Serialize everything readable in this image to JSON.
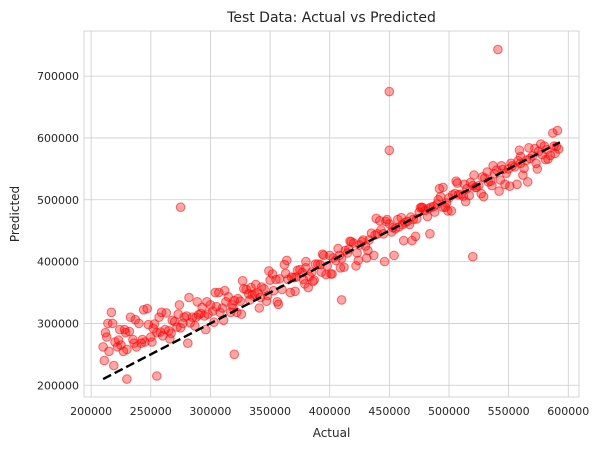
{
  "chart_data": {
    "type": "scatter",
    "title": "Test Data: Actual vs Predicted",
    "xlabel": "Actual",
    "ylabel": "Predicted",
    "xlim": [
      194000,
      609000
    ],
    "ylim": [
      181000,
      773000
    ],
    "xticks": [
      200000,
      250000,
      300000,
      350000,
      400000,
      450000,
      500000,
      550000,
      600000
    ],
    "yticks": [
      200000,
      300000,
      400000,
      500000,
      600000,
      700000
    ],
    "grid": true,
    "point_color": "#ff0000",
    "line_color": "#000000",
    "reference_line": {
      "style": "dashed",
      "x": [
        210000,
        593000
      ],
      "y": [
        210000,
        593000
      ]
    },
    "series": [
      {
        "x": [
          210000,
          212000,
          215000,
          218000,
          220000,
          222000,
          225000,
          228000,
          230000,
          232000,
          235000,
          238000,
          240000,
          243000,
          245000,
          248000,
          250000,
          252000,
          255000,
          258000,
          260000,
          263000,
          265000,
          268000,
          270000,
          272000,
          275000,
          278000,
          280000,
          283000,
          285000,
          288000,
          290000,
          293000,
          295000,
          298000,
          300000,
          302000,
          305000,
          308000,
          310000,
          313000,
          315000,
          318000,
          320000,
          323000,
          325000,
          328000,
          330000,
          333000,
          335000,
          338000,
          340000,
          343000,
          345000,
          348000,
          350000,
          353000,
          355000,
          358000,
          360000,
          363000,
          365000,
          368000,
          370000,
          373000,
          375000,
          378000,
          380000,
          383000,
          385000,
          388000,
          390000,
          393000,
          395000,
          398000,
          400000,
          403000,
          405000,
          408000,
          410000,
          413000,
          415000,
          418000,
          420000,
          423000,
          425000,
          428000,
          430000,
          433000,
          435000,
          438000,
          440000,
          443000,
          445000,
          448000,
          450000,
          453000,
          455000,
          458000,
          460000,
          463000,
          465000,
          468000,
          470000,
          473000,
          475000,
          478000,
          480000,
          483000,
          485000,
          488000,
          490000,
          493000,
          495000,
          498000,
          500000,
          503000,
          505000,
          508000,
          510000,
          513000,
          515000,
          518000,
          520000,
          523000,
          525000,
          528000,
          530000,
          533000,
          535000,
          538000,
          540000,
          543000,
          545000,
          548000,
          550000,
          553000,
          555000,
          558000,
          560000,
          563000,
          565000,
          568000,
          570000,
          573000,
          575000,
          578000,
          580000,
          583000,
          585000,
          588000,
          590000,
          592000,
          211000,
          214000,
          219000,
          224000,
          229000,
          236000,
          244000,
          251000,
          259000,
          266000,
          274000,
          281000,
          289000,
          296000,
          304000,
          311000,
          319000,
          326000,
          334000,
          341000,
          349000,
          356000,
          364000,
          371000,
          379000,
          386000,
          394000,
          401000,
          409000,
          416000,
          424000,
          431000,
          439000,
          446000,
          454000,
          461000,
          469000,
          476000,
          484000,
          491000,
          499000,
          506000,
          514000,
          521000,
          529000,
          536000,
          544000,
          551000,
          559000,
          566000,
          574000,
          581000,
          589000,
          213000,
          217000,
          223000,
          227000,
          233000,
          237000,
          242000,
          247000,
          253000,
          257000,
          262000,
          267000,
          273000,
          277000,
          282000,
          287000,
          292000,
          297000,
          303000,
          307000,
          312000,
          317000,
          322000,
          327000,
          332000,
          337000,
          342000,
          347000,
          352000,
          357000,
          362000,
          367000,
          372000,
          377000,
          382000,
          387000,
          392000,
          397000,
          402000,
          407000,
          412000,
          417000,
          422000,
          427000,
          432000,
          437000,
          442000,
          447000,
          452000,
          457000,
          462000,
          467000,
          472000,
          477000,
          482000,
          487000,
          492000,
          497000,
          502000,
          507000,
          512000,
          517000,
          522000,
          527000,
          532000,
          537000,
          542000,
          547000,
          552000,
          557000,
          562000,
          567000,
          572000,
          577000,
          582000,
          587000,
          591000,
          541000,
          450000,
          275000,
          410000,
          450000,
          320000,
          520000,
          380000,
          495000,
          560000,
          230000,
          255000
        ],
        "y": [
          262000,
          285000,
          255000,
          300000,
          270000,
          262000,
          265000,
          290000,
          258000,
          287000,
          274000,
          262000,
          300000,
          274000,
          270000,
          298000,
          278000,
          292000,
          285000,
          286000,
          280000,
          317000,
          288000,
          305000,
          303000,
          294000,
          293000,
          310000,
          312000,
          301000,
          310000,
          310000,
          314000,
          326000,
          312000,
          315000,
          330000,
          320000,
          327000,
          318000,
          325000,
          335000,
          343000,
          330000,
          337000,
          340000,
          336000,
          356000,
          355000,
          338000,
          346000,
          363000,
          349000,
          359000,
          356000,
          345000,
          370000,
          353000,
          371000,
          372000,
          355000,
          381000,
          371000,
          375000,
          374000,
          386000,
          387000,
          371000,
          390000,
          376000,
          383000,
          396000,
          396000,
          383000,
          410000,
          393000,
          410000,
          406000,
          402000,
          410000,
          405000,
          418000,
          414000,
          432000,
          430000,
          414000,
          427000,
          435000,
          425000,
          435000,
          446000,
          443000,
          445000,
          451000,
          445000,
          468000,
          461000,
          455000,
          453000,
          456000,
          471000,
          463000,
          465000,
          472000,
          468000,
          469000,
          480000,
          487000,
          483000,
          486000,
          488000,
          480000,
          493000,
          505000,
          488000,
          495000,
          503000,
          508000,
          510000,
          508000,
          509000,
          525000,
          518000,
          528000,
          523000,
          520000,
          523000,
          537000,
          535000,
          529000,
          530000,
          542000,
          548000,
          532000,
          549000,
          543000,
          550000,
          555000,
          553000,
          563000,
          559000,
          551000,
          564000,
          567000,
          571000,
          559000,
          578000,
          573000,
          587000,
          566000,
          572000,
          587000,
          586000,
          582000,
          240000,
          300000,
          232000,
          290000,
          285000,
          268000,
          322000,
          270000,
          318000,
          275000,
          330000,
          268000,
          335000,
          290000,
          350000,
          305000,
          325000,
          315000,
          358000,
          325000,
          385000,
          335000,
          402000,
          352000,
          364000,
          368000,
          412000,
          380000,
          390000,
          420000,
          402000,
          406000,
          470000,
          400000,
          410000,
          460000,
          434000,
          487000,
          445000,
          500000,
          482000,
          530000,
          497000,
          540000,
          505000,
          523000,
          555000,
          522000,
          580000,
          529000,
          550000,
          565000,
          575000,
          278000,
          318000,
          273000,
          255000,
          310000,
          306000,
          268000,
          324000,
          299000,
          310000,
          290000,
          284000,
          315000,
          300000,
          342000,
          296000,
          316000,
          335000,
          302000,
          350000,
          353000,
          318000,
          318000,
          369000,
          348000,
          348000,
          342000,
          336000,
          380000,
          331000,
          395000,
          350000,
          375000,
          382000,
          358000,
          370000,
          395000,
          379000,
          380000,
          421000,
          391000,
          433000,
          393000,
          432000,
          418000,
          410000,
          466000,
          465000,
          448000,
          468000,
          434000,
          460000,
          441000,
          488000,
          473000,
          489000,
          518000,
          488000,
          482000,
          527000,
          506000,
          507000,
          520000,
          510000,
          545000,
          555000,
          514000,
          525000,
          559000,
          525000,
          540000,
          584000,
          583000,
          590000,
          581000,
          608000,
          612000,
          743000,
          675000,
          488000,
          338000,
          580000,
          250000,
          408000,
          400000,
          520000,
          570000,
          210000,
          215000
        ]
      }
    ]
  }
}
